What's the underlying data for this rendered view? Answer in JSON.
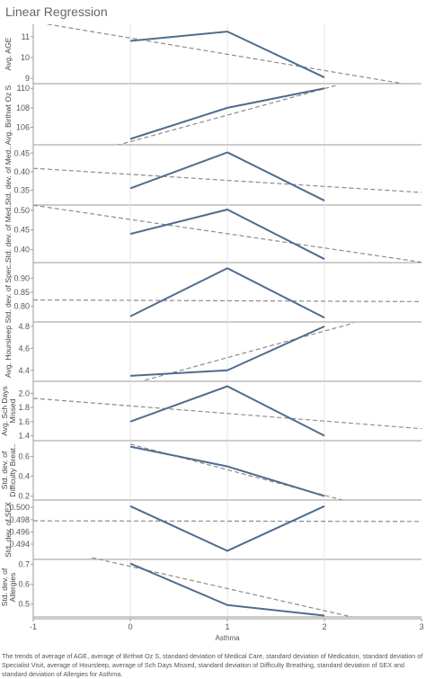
{
  "title": "Linear Regression",
  "caption": "The trends of average of AGE, average of Birthwt Oz S, standard deviation of Medical Care, standard deviation of Medication, standard deviation of Specialist Visit, average of Hoursleep, average of Sch Days Missed, standard deviation of Difficulty Breathing, standard deviation of SEX and standard deviation of Allergies for Asthma.",
  "colors": {
    "line": "#4e6d8f",
    "trend": "#8c8c8c",
    "grid": "#e6e6e6",
    "border": "#9a9a9a"
  },
  "chart_data": {
    "type": "line",
    "x": [
      0,
      1,
      2
    ],
    "xlabel": "Asthma",
    "xlim": [
      -1,
      3
    ],
    "xticks": [
      "-1",
      "0",
      "1",
      "2",
      "3"
    ],
    "panels": [
      {
        "ylabel": [
          "Avg. AGE"
        ],
        "values": [
          10.8,
          11.25,
          9.05
        ],
        "ylim": [
          8.75,
          11.6
        ],
        "yticks": [
          "9",
          "10",
          "11"
        ],
        "trend": [
          [
            -1,
            11.72
          ],
          [
            3,
            8.6
          ]
        ]
      },
      {
        "ylabel": [
          "Avg. Birthwt Oz S"
        ],
        "values": [
          104.8,
          108.0,
          110.0
        ],
        "ylim": [
          104.2,
          110.3
        ],
        "yticks": [
          "106",
          "108",
          "110"
        ],
        "trend": [
          [
            -1,
            101.8
          ],
          [
            3,
            112.7
          ]
        ]
      },
      {
        "ylabel": [
          "Std. dev. of Med.."
        ],
        "values": [
          0.355,
          0.452,
          0.322
        ],
        "ylim": [
          0.31,
          0.47
        ],
        "yticks": [
          "0.35",
          "0.40",
          "0.45"
        ],
        "trend": [
          [
            -1,
            0.409
          ],
          [
            3,
            0.344
          ]
        ]
      },
      {
        "ylabel": [
          "Std. dev. of Med.."
        ],
        "values": [
          0.44,
          0.502,
          0.376
        ],
        "ylim": [
          0.367,
          0.518
        ],
        "yticks": [
          "0.40",
          "0.45",
          "0.50"
        ],
        "trend": [
          [
            -1,
            0.513
          ],
          [
            3,
            0.368
          ]
        ]
      },
      {
        "ylabel": [
          "Std. dev. of Spec.."
        ],
        "values": [
          0.765,
          0.935,
          0.76
        ],
        "ylim": [
          0.745,
          0.955
        ],
        "yticks": [
          "0.80",
          "0.85",
          "0.90"
        ],
        "trend": [
          [
            -1,
            0.823
          ],
          [
            3,
            0.817
          ]
        ]
      },
      {
        "ylabel": [
          "Avg. Hoursleep"
        ],
        "values": [
          4.35,
          4.4,
          4.8
        ],
        "ylim": [
          4.3,
          4.84
        ],
        "yticks": [
          "4.4",
          "4.6",
          "4.8"
        ],
        "trend": [
          [
            0.15,
            4.31
          ],
          [
            2.3,
            4.83
          ]
        ]
      },
      {
        "ylabel": [
          "Avg. Sch Days",
          "Missed"
        ],
        "values": [
          1.6,
          2.1,
          1.4
        ],
        "ylim": [
          1.33,
          2.17
        ],
        "yticks": [
          "1.4",
          "1.6",
          "1.8",
          "2.0"
        ],
        "trend": [
          [
            -1,
            1.93
          ],
          [
            3,
            1.5
          ]
        ]
      },
      {
        "ylabel": [
          "Std. dev. of",
          "Difficulty Breat.."
        ],
        "values": [
          0.7,
          0.5,
          0.2
        ],
        "ylim": [
          0.16,
          0.76
        ],
        "yticks": [
          "0.2",
          "0.4",
          "0.6"
        ],
        "trend": [
          [
            0,
            0.725
          ],
          [
            2.3,
            0.13
          ]
        ]
      },
      {
        "ylabel": [
          "Std. dev. of SEX"
        ],
        "values": [
          0.5002,
          0.4929,
          0.5002
        ],
        "ylim": [
          0.4915,
          0.5012
        ],
        "yticks": [
          "0.494",
          "0.496",
          "0.498",
          "0.500"
        ],
        "trend": [
          [
            -1,
            0.4978
          ],
          [
            3,
            0.4977
          ]
        ]
      },
      {
        "ylabel": [
          "Std. dev. of",
          "Allergies"
        ],
        "values": [
          0.705,
          0.495,
          0.442
        ],
        "ylim": [
          0.435,
          0.735
        ],
        "yticks": [
          "0.5",
          "0.6",
          "0.7"
        ],
        "trend": [
          [
            -0.4,
            0.735
          ],
          [
            3,
            0.355
          ]
        ]
      }
    ]
  }
}
